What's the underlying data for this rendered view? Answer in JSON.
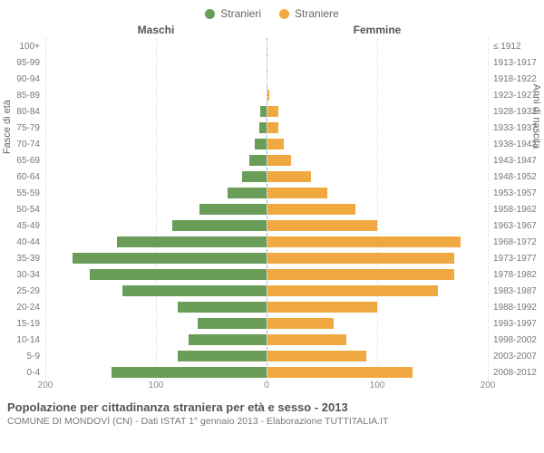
{
  "legend": {
    "male": {
      "label": "Stranieri",
      "color": "#6a9e58"
    },
    "female": {
      "label": "Straniere",
      "color": "#f0a940"
    }
  },
  "headers": {
    "male": "Maschi",
    "female": "Femmine"
  },
  "axis_titles": {
    "left": "Fasce di età",
    "right": "Anni di nascita"
  },
  "chart": {
    "type": "population-pyramid",
    "x_max": 200,
    "x_ticks": [
      200,
      100,
      0,
      100,
      200
    ],
    "grid_color": "#dddddd",
    "center_line_color": "#aaaaaa",
    "background_color": "#ffffff",
    "bar_color_male": "#6a9e58",
    "bar_color_female": "#f0a940",
    "label_fontsize": 10,
    "rows": [
      {
        "age": "100+",
        "year": "≤ 1912",
        "m": 0,
        "f": 0
      },
      {
        "age": "95-99",
        "year": "1913-1917",
        "m": 0,
        "f": 0
      },
      {
        "age": "90-94",
        "year": "1918-1922",
        "m": 0,
        "f": 0
      },
      {
        "age": "85-89",
        "year": "1923-1927",
        "m": 0,
        "f": 2
      },
      {
        "age": "80-84",
        "year": "1928-1932",
        "m": 5,
        "f": 10
      },
      {
        "age": "75-79",
        "year": "1933-1937",
        "m": 6,
        "f": 10
      },
      {
        "age": "70-74",
        "year": "1938-1942",
        "m": 10,
        "f": 15
      },
      {
        "age": "65-69",
        "year": "1943-1947",
        "m": 15,
        "f": 22
      },
      {
        "age": "60-64",
        "year": "1948-1952",
        "m": 22,
        "f": 40
      },
      {
        "age": "55-59",
        "year": "1953-1957",
        "m": 35,
        "f": 55
      },
      {
        "age": "50-54",
        "year": "1958-1962",
        "m": 60,
        "f": 80
      },
      {
        "age": "45-49",
        "year": "1963-1967",
        "m": 85,
        "f": 100
      },
      {
        "age": "40-44",
        "year": "1968-1972",
        "m": 135,
        "f": 175
      },
      {
        "age": "35-39",
        "year": "1973-1977",
        "m": 175,
        "f": 170
      },
      {
        "age": "30-34",
        "year": "1978-1982",
        "m": 160,
        "f": 170
      },
      {
        "age": "25-29",
        "year": "1983-1987",
        "m": 130,
        "f": 155
      },
      {
        "age": "20-24",
        "year": "1988-1992",
        "m": 80,
        "f": 100
      },
      {
        "age": "15-19",
        "year": "1993-1997",
        "m": 62,
        "f": 60
      },
      {
        "age": "10-14",
        "year": "1998-2002",
        "m": 70,
        "f": 72
      },
      {
        "age": "5-9",
        "year": "2003-2007",
        "m": 80,
        "f": 90
      },
      {
        "age": "0-4",
        "year": "2008-2012",
        "m": 140,
        "f": 132
      }
    ]
  },
  "footer": {
    "title": "Popolazione per cittadinanza straniera per età e sesso - 2013",
    "subtitle": "COMUNE DI MONDOVÌ (CN) - Dati ISTAT 1° gennaio 2013 - Elaborazione TUTTITALIA.IT"
  }
}
